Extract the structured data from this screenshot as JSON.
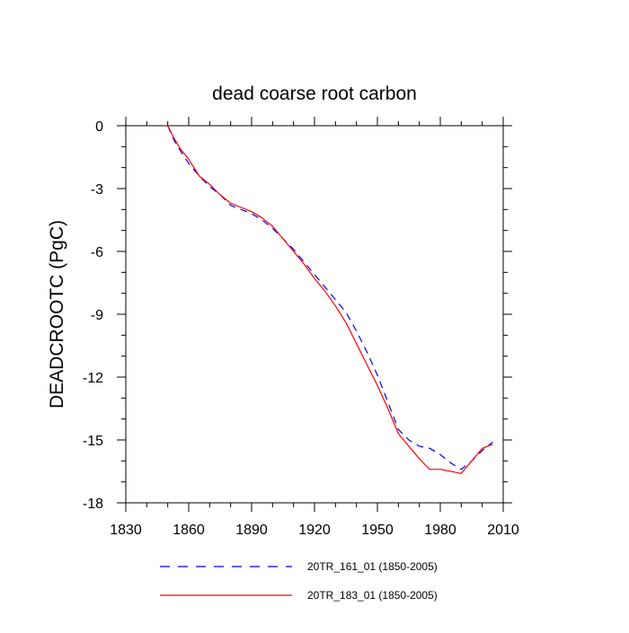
{
  "chart_data": {
    "type": "line",
    "title": "dead coarse root carbon",
    "xlabel": "",
    "ylabel": "DEADCROOTC  (PgC)",
    "xlim": [
      1830,
      2010
    ],
    "ylim": [
      -18,
      0
    ],
    "xticks": [
      1830,
      1860,
      1890,
      1920,
      1950,
      1980,
      2010
    ],
    "yticks": [
      0,
      -3,
      -6,
      -9,
      -12,
      -15,
      -18
    ],
    "xtick_labels": [
      "1830",
      "1860",
      "1890",
      "1920",
      "1950",
      "1980",
      "2010"
    ],
    "ytick_labels": [
      "0",
      "-3",
      "-6",
      "-9",
      "-12",
      "-15",
      "-18"
    ],
    "grid": false,
    "legend_position": "bottom-center",
    "series": [
      {
        "name": "20TR_161_01 (1850-2005)",
        "color": "#0000ff",
        "style": "dashed",
        "x": [
          1850,
          1853,
          1856,
          1860,
          1865,
          1870,
          1875,
          1880,
          1885,
          1890,
          1895,
          1900,
          1905,
          1910,
          1915,
          1920,
          1925,
          1930,
          1935,
          1940,
          1945,
          1950,
          1955,
          1960,
          1965,
          1970,
          1975,
          1980,
          1985,
          1990,
          1995,
          2000,
          2005
        ],
        "y": [
          0,
          -0.7,
          -1.2,
          -1.8,
          -2.4,
          -2.9,
          -3.3,
          -3.8,
          -4.0,
          -4.2,
          -4.5,
          -4.9,
          -5.4,
          -5.9,
          -6.5,
          -7.1,
          -7.7,
          -8.3,
          -8.9,
          -9.8,
          -10.8,
          -11.9,
          -13.2,
          -14.5,
          -15.0,
          -15.3,
          -15.4,
          -15.7,
          -16.1,
          -16.4,
          -16.0,
          -15.5,
          -15.1
        ]
      },
      {
        "name": "20TR_183_01 (1850-2005)",
        "color": "#ff0000",
        "style": "solid",
        "x": [
          1850,
          1853,
          1856,
          1860,
          1865,
          1870,
          1875,
          1880,
          1885,
          1890,
          1895,
          1900,
          1905,
          1910,
          1915,
          1920,
          1925,
          1930,
          1935,
          1940,
          1945,
          1950,
          1955,
          1960,
          1965,
          1970,
          1975,
          1980,
          1985,
          1990,
          1995,
          2000,
          2005
        ],
        "y": [
          0,
          -0.6,
          -1.1,
          -1.6,
          -2.4,
          -2.8,
          -3.3,
          -3.7,
          -3.9,
          -4.1,
          -4.4,
          -4.8,
          -5.4,
          -6.0,
          -6.6,
          -7.3,
          -7.9,
          -8.6,
          -9.4,
          -10.4,
          -11.4,
          -12.4,
          -13.5,
          -14.7,
          -15.3,
          -15.9,
          -16.4,
          -16.4,
          -16.5,
          -16.6,
          -16.0,
          -15.4,
          -15.2
        ]
      }
    ]
  }
}
